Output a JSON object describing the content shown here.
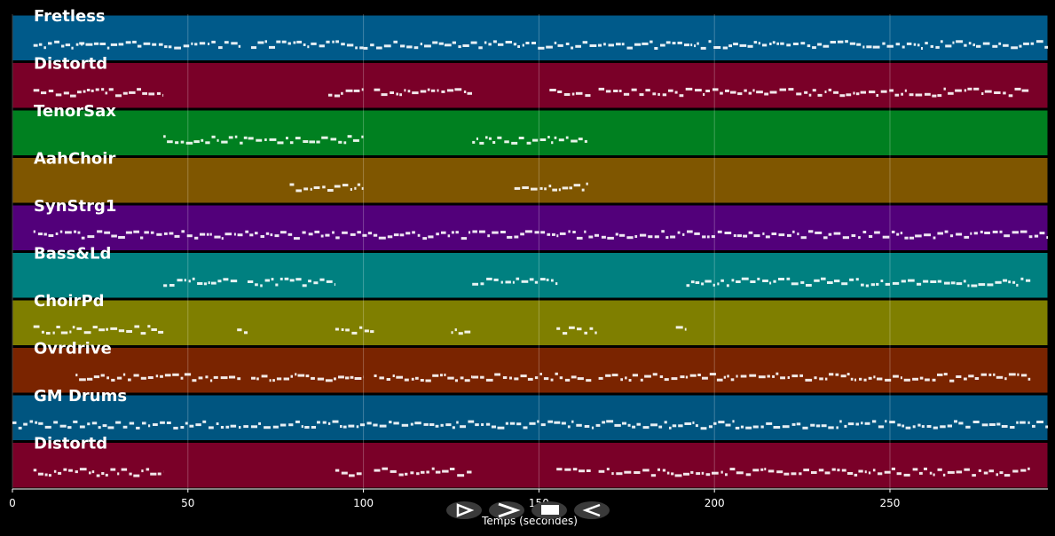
{
  "chart_data": {
    "type": "piano-roll",
    "xlabel": "Temps (secondes)",
    "xlim": [
      0,
      295
    ],
    "xticks": [
      0,
      50,
      100,
      150,
      200,
      250
    ],
    "grid": true,
    "tracks": [
      {
        "name": "Fretless",
        "color": "#005a8a",
        "segments": [
          [
            6,
            20
          ],
          [
            19,
            65
          ],
          [
            68,
            100
          ],
          [
            100,
            295
          ]
        ]
      },
      {
        "name": "Distortd",
        "color": "#7a0028",
        "segments": [
          [
            6,
            43
          ],
          [
            90,
            100
          ],
          [
            103,
            131
          ],
          [
            153,
            165
          ],
          [
            167,
            290
          ]
        ]
      },
      {
        "name": "TenorSax",
        "color": "#008020",
        "segments": [
          [
            43,
            100
          ],
          [
            131,
            164
          ]
        ]
      },
      {
        "name": "AahChoir",
        "color": "#7f5600",
        "segments": [
          [
            79,
            100
          ],
          [
            143,
            164
          ]
        ]
      },
      {
        "name": "SynStrg1",
        "color": "#52007a",
        "segments": [
          [
            6,
            295
          ]
        ]
      },
      {
        "name": "Bass&Ld",
        "color": "#008080",
        "segments": [
          [
            43,
            64
          ],
          [
            67,
            92
          ],
          [
            131,
            156
          ],
          [
            192,
            290
          ]
        ]
      },
      {
        "name": "ChoirPd",
        "color": "#7f7f00",
        "segments": [
          [
            6,
            43
          ],
          [
            64,
            67
          ],
          [
            92,
            103
          ],
          [
            125,
            131
          ],
          [
            155,
            167
          ],
          [
            189,
            192
          ]
        ]
      },
      {
        "name": "Ovrdrive",
        "color": "#7a2400",
        "segments": [
          [
            18,
            65
          ],
          [
            68,
            100
          ],
          [
            103,
            131
          ],
          [
            131,
            165
          ],
          [
            167,
            290
          ]
        ]
      },
      {
        "name": "GM Drums",
        "color": "#005580",
        "segments": [
          [
            0,
            295
          ]
        ]
      },
      {
        "name": "Distortd",
        "color": "#7a0028",
        "segments": [
          [
            6,
            43
          ],
          [
            92,
            100
          ],
          [
            103,
            131
          ],
          [
            155,
            165
          ],
          [
            167,
            290
          ]
        ]
      }
    ]
  },
  "controls": {
    "play_icon": "play-icon",
    "forward_icon": "fast-forward-icon",
    "stop_icon": "stop-icon",
    "rewind_icon": "rewind-icon"
  }
}
